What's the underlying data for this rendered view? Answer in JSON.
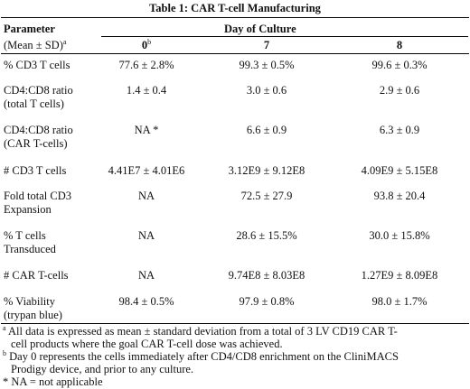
{
  "title": "Table 1: CAR T-cell Manufacturing",
  "header": {
    "parameter": "Parameter",
    "group": "Day of Culture",
    "stat": "(Mean ± SD)",
    "stat_note": "a",
    "days": [
      "0",
      "7",
      "8"
    ],
    "day0_note": "b"
  },
  "rows": [
    {
      "param": [
        "% CD3 T cells"
      ],
      "values": [
        "77.6 ± 2.8%",
        "99.3 ± 0.5%",
        "99.6 ± 0.3%"
      ]
    },
    {
      "param": [
        "CD4:CD8 ratio",
        "(total T cells)"
      ],
      "values": [
        "1.4 ± 0.4",
        "3.0 ± 0.6",
        "2.9 ± 0.6"
      ]
    },
    {
      "param": [
        "CD4:CD8 ratio",
        "(CAR T-cells)"
      ],
      "values": [
        "NA *",
        "6.6 ± 0.9",
        "6.3 ± 0.9"
      ]
    },
    {
      "param": [
        "# CD3 T cells"
      ],
      "values": [
        "4.41E7 ± 4.01E6",
        "3.12E9 ± 9.12E8",
        "4.09E9 ± 5.15E8"
      ]
    },
    {
      "param": [
        "Fold total CD3",
        "Expansion"
      ],
      "values": [
        "NA",
        "72.5 ± 27.9",
        "93.8 ± 20.4"
      ]
    },
    {
      "param": [
        "% T cells",
        "Transduced"
      ],
      "values": [
        "NA",
        "28.6 ± 15.5%",
        "30.0 ± 15.8%"
      ]
    },
    {
      "param": [
        "# CAR T-cells"
      ],
      "values": [
        "NA",
        "9.74E8 ± 8.03E8",
        "1.27E9 ± 8.09E8"
      ]
    },
    {
      "param": [
        "% Viability",
        "(trypan blue)"
      ],
      "values": [
        "98.4 ± 0.5%",
        "97.9 ± 0.8%",
        "98.0 ± 1.7%"
      ]
    }
  ],
  "footnotes": [
    {
      "mark": "a",
      "lines": [
        "All data is expressed as mean ± standard deviation from a total of 3 LV CD19 CAR T-",
        "cell products where the goal CAR T-cell dose was achieved."
      ]
    },
    {
      "mark": "b",
      "lines": [
        "Day 0 represents the cells immediately after CD4/CD8 enrichment on the CliniMACS",
        "Prodigy device, and prior to any culture."
      ]
    },
    {
      "text": "* NA = not applicable"
    }
  ]
}
